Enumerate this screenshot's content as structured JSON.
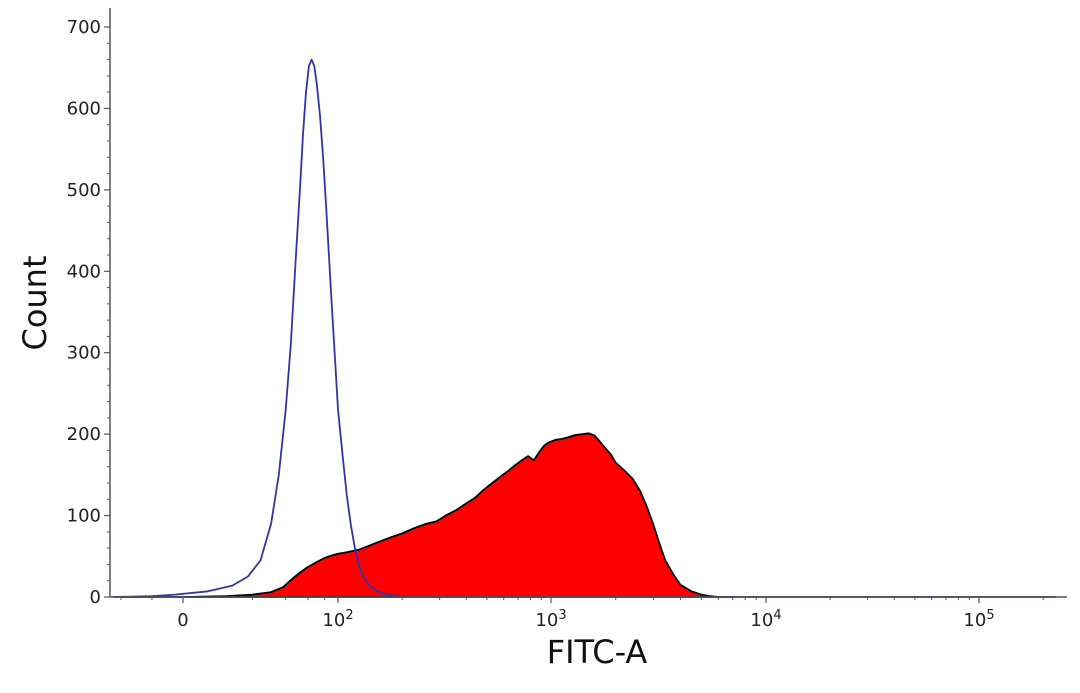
{
  "chart_data": {
    "type": "area",
    "title": "",
    "xlabel": "FITC-A",
    "ylabel": "Count",
    "x_scale": "biexponential",
    "xlim": [
      -45,
      230000
    ],
    "ylim": [
      0,
      720
    ],
    "x_ticks": [
      {
        "value": 0,
        "label": "0",
        "exp": ""
      },
      {
        "value": 100,
        "label": "10",
        "exp": "2"
      },
      {
        "value": 1000,
        "label": "10",
        "exp": "3"
      },
      {
        "value": 10000,
        "label": "10",
        "exp": "4"
      },
      {
        "value": 100000,
        "label": "10",
        "exp": "5"
      }
    ],
    "y_ticks": [
      0,
      100,
      200,
      300,
      400,
      500,
      600,
      700
    ],
    "grid": false,
    "colors": {
      "filled_series_fill": "#ff0000",
      "filled_series_stroke": "#000000",
      "outline_series_stroke": "#3333aa",
      "axis": "#555555"
    },
    "series": [
      {
        "style": "filled",
        "points": [
          [
            -40,
            0
          ],
          [
            0,
            0
          ],
          [
            10,
            1
          ],
          [
            20,
            3
          ],
          [
            30,
            6
          ],
          [
            38,
            12
          ],
          [
            45,
            22
          ],
          [
            52,
            30
          ],
          [
            60,
            37
          ],
          [
            70,
            43
          ],
          [
            80,
            48
          ],
          [
            90,
            51
          ],
          [
            100,
            53
          ],
          [
            110,
            55
          ],
          [
            125,
            58
          ],
          [
            140,
            63
          ],
          [
            160,
            69
          ],
          [
            180,
            74
          ],
          [
            200,
            78
          ],
          [
            230,
            85
          ],
          [
            260,
            90
          ],
          [
            290,
            93
          ],
          [
            320,
            100
          ],
          [
            360,
            107
          ],
          [
            400,
            115
          ],
          [
            440,
            122
          ],
          [
            480,
            131
          ],
          [
            530,
            140
          ],
          [
            580,
            148
          ],
          [
            630,
            155
          ],
          [
            680,
            162
          ],
          [
            730,
            168
          ],
          [
            780,
            173
          ],
          [
            830,
            168
          ],
          [
            880,
            178
          ],
          [
            930,
            186
          ],
          [
            980,
            190
          ],
          [
            1050,
            193
          ],
          [
            1120,
            194
          ],
          [
            1200,
            196
          ],
          [
            1300,
            199
          ],
          [
            1400,
            200
          ],
          [
            1500,
            201
          ],
          [
            1600,
            198
          ],
          [
            1700,
            190
          ],
          [
            1800,
            182
          ],
          [
            1900,
            175
          ],
          [
            2000,
            165
          ],
          [
            2200,
            155
          ],
          [
            2400,
            145
          ],
          [
            2600,
            130
          ],
          [
            2800,
            110
          ],
          [
            3000,
            88
          ],
          [
            3200,
            65
          ],
          [
            3400,
            45
          ],
          [
            3700,
            28
          ],
          [
            4000,
            15
          ],
          [
            4500,
            7
          ],
          [
            5000,
            3
          ],
          [
            5500,
            1
          ],
          [
            6000,
            0
          ],
          [
            7000,
            0
          ]
        ]
      },
      {
        "style": "outline",
        "points": [
          [
            -45,
            0
          ],
          [
            -20,
            1
          ],
          [
            -5,
            3
          ],
          [
            5,
            7
          ],
          [
            12,
            14
          ],
          [
            18,
            25
          ],
          [
            24,
            45
          ],
          [
            30,
            90
          ],
          [
            35,
            150
          ],
          [
            40,
            230
          ],
          [
            44,
            310
          ],
          [
            48,
            410
          ],
          [
            52,
            500
          ],
          [
            55,
            570
          ],
          [
            58,
            620
          ],
          [
            61,
            652
          ],
          [
            64,
            660
          ],
          [
            67,
            652
          ],
          [
            70,
            630
          ],
          [
            74,
            590
          ],
          [
            78,
            540
          ],
          [
            82,
            480
          ],
          [
            86,
            420
          ],
          [
            90,
            360
          ],
          [
            95,
            295
          ],
          [
            100,
            230
          ],
          [
            105,
            175
          ],
          [
            110,
            125
          ],
          [
            115,
            88
          ],
          [
            120,
            60
          ],
          [
            125,
            40
          ],
          [
            130,
            27
          ],
          [
            140,
            15
          ],
          [
            150,
            8
          ],
          [
            165,
            4
          ],
          [
            180,
            2
          ],
          [
            200,
            1
          ],
          [
            250,
            0
          ],
          [
            1000,
            0
          ],
          [
            10000,
            0
          ],
          [
            230000,
            0
          ]
        ]
      }
    ]
  }
}
